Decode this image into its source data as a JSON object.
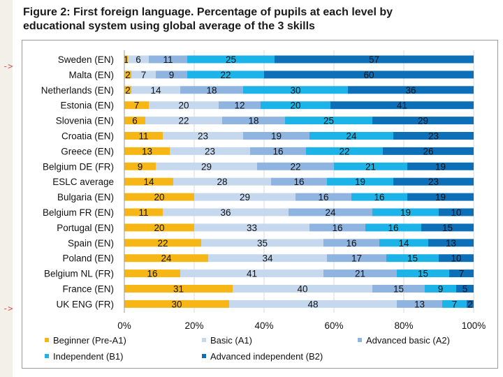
{
  "page": {
    "title_line1": "Figure 2:  First foreign language. Percentage of pupils at each level by",
    "title_line2": "educational system using global average of the 3 skills",
    "arrow_marker": "->"
  },
  "chart_data": {
    "type": "bar",
    "orientation": "horizontal",
    "stacked": true,
    "title": "Figure 2:  First foreign language. Percentage of pupils at each level by educational system using global average of the 3 skills",
    "categories": [
      "Sweden (EN)",
      "Malta (EN)",
      "Netherlands (EN)",
      "Estonia (EN)",
      "Slovenia (EN)",
      "Croatia (EN)",
      "Greece (EN)",
      "Belgium DE (FR)",
      "ESLC average",
      "Bulgaria (EN)",
      "Belgium FR (EN)",
      "Portugal (EN)",
      "Spain (EN)",
      "Poland (EN)",
      "Belgium NL (FR)",
      "France (EN)",
      "UK ENG (FR)"
    ],
    "series": [
      {
        "name": "Beginner (Pre-A1)",
        "color": "#f6b716",
        "values": [
          1,
          2,
          2,
          7,
          6,
          11,
          13,
          9,
          14,
          20,
          11,
          20,
          22,
          24,
          16,
          31,
          30
        ]
      },
      {
        "name": "Basic (A1)",
        "color": "#c5d8ee",
        "values": [
          6,
          7,
          14,
          20,
          22,
          23,
          23,
          29,
          28,
          29,
          36,
          33,
          35,
          34,
          41,
          40,
          48
        ]
      },
      {
        "name": "Advanced basic (A2)",
        "color": "#8fb4df",
        "values": [
          11,
          9,
          18,
          12,
          18,
          19,
          16,
          22,
          16,
          16,
          24,
          16,
          16,
          17,
          21,
          15,
          13
        ]
      },
      {
        "name": "Independent (B1)",
        "color": "#1bb3e8",
        "values": [
          25,
          22,
          30,
          20,
          25,
          24,
          22,
          21,
          19,
          16,
          19,
          16,
          14,
          15,
          15,
          9,
          7
        ]
      },
      {
        "name": "Advanced independent (B2)",
        "color": "#0d6fb8",
        "values": [
          57,
          60,
          36,
          41,
          29,
          23,
          26,
          19,
          23,
          19,
          10,
          15,
          13,
          10,
          7,
          5,
          2
        ]
      }
    ],
    "xlim": [
      0,
      100
    ],
    "x_ticks": [
      "0%",
      "20%",
      "40%",
      "60%",
      "80%",
      "100%"
    ],
    "xlabel": "",
    "ylabel": "",
    "legend": {
      "placement": "bottom",
      "entries": [
        "Beginner (Pre-A1)",
        "Basic (A1)",
        "Advanced basic (A2)",
        "Independent (B1)",
        "Advanced independent (B2)"
      ]
    }
  }
}
